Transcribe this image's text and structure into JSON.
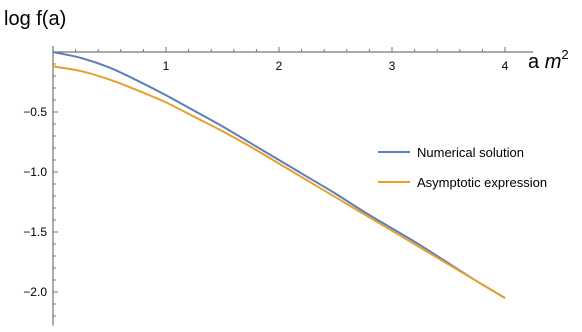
{
  "chart_data": {
    "type": "line",
    "ylabel": "log f(a)",
    "xlabel_prefix": "a ",
    "xlabel_var": "m",
    "xlabel_sup": "2",
    "xlim": [
      0,
      4.25
    ],
    "ylim": [
      -2.28,
      0.05
    ],
    "x_ticks": [
      1,
      2,
      3,
      4
    ],
    "x_tick_labels": [
      "1",
      "2",
      "3",
      "4"
    ],
    "y_ticks": [
      -0.5,
      -1.0,
      -1.5,
      -2.0
    ],
    "y_tick_labels": [
      "-0.5",
      "-1.0",
      "-1.5",
      "-2.0"
    ],
    "grid": false,
    "legend_position": "right",
    "series": [
      {
        "name": "Numerical solution",
        "color": "#5b7fb9",
        "x": [
          0,
          0.25,
          0.5,
          0.75,
          1.0,
          1.25,
          1.5,
          1.75,
          2.0,
          2.25,
          2.5,
          2.75,
          3.0,
          3.25,
          3.5,
          3.75,
          4.0
        ],
        "y": [
          0.0,
          -0.05,
          -0.13,
          -0.24,
          -0.36,
          -0.49,
          -0.62,
          -0.76,
          -0.9,
          -1.04,
          -1.18,
          -1.33,
          -1.47,
          -1.61,
          -1.76,
          -1.91,
          -2.05
        ]
      },
      {
        "name": "Asymptotic expression",
        "color": "#e7a12b",
        "x": [
          0,
          0.25,
          0.5,
          0.75,
          1.0,
          1.25,
          1.5,
          1.75,
          2.0,
          2.25,
          2.5,
          2.75,
          3.0,
          3.25,
          3.5,
          3.75,
          4.0
        ],
        "y": [
          -0.12,
          -0.16,
          -0.23,
          -0.32,
          -0.42,
          -0.54,
          -0.66,
          -0.79,
          -0.93,
          -1.07,
          -1.21,
          -1.35,
          -1.49,
          -1.63,
          -1.77,
          -1.91,
          -2.05
        ]
      }
    ]
  }
}
